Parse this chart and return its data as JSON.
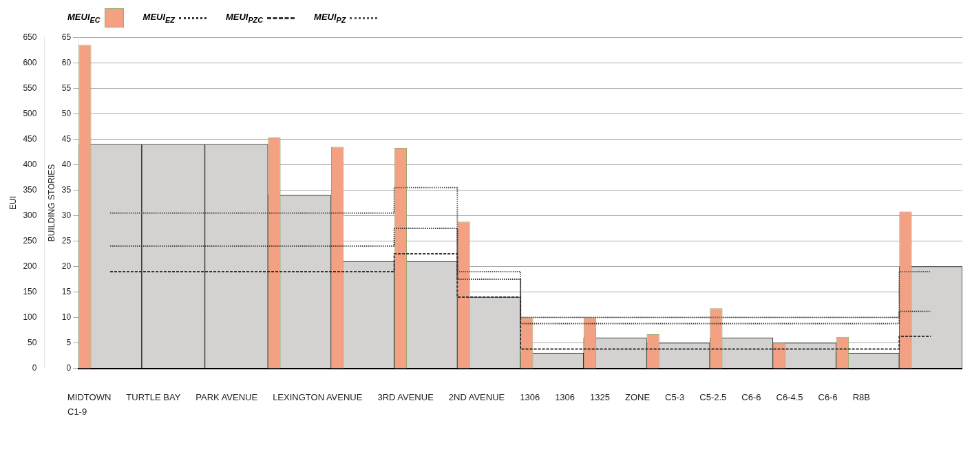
{
  "chart_data": {
    "type": "bar",
    "ylabel": "BUILDING STORIES",
    "y2label": "EUI",
    "categories": [
      null,
      null,
      null,
      null,
      null,
      null,
      null,
      null,
      null,
      null,
      null,
      null,
      null,
      null
    ],
    "series": [
      {
        "color": "#d3d2d1",
        "values": [
          44,
          44,
          44,
          34,
          21,
          21,
          14,
          3,
          6,
          5,
          6,
          5,
          3,
          20
        ]
      },
      {
        "name": "MEUI$_{EC}$",
        "axis": "y2",
        "color": "#f3a083",
        "values": [
          635,
          null,
          null,
          453,
          435,
          433,
          288,
          100,
          100,
          67,
          118,
          50,
          62,
          308
        ]
      },
      {
        "name": "MEUI$_{EZ}$",
        "type": "step",
        "axis": "y2",
        "color": "#333333",
        "line_style": "dotted",
        "values": [
          240,
          240,
          240,
          240,
          240,
          275,
          175,
          88,
          88,
          88,
          88,
          88,
          88,
          112
        ]
      },
      {
        "name": "MEUI$_{PZC}$",
        "type": "step",
        "axis": "y2",
        "color": "#333333",
        "line_style": "dashed",
        "values": [
          190,
          190,
          190,
          190,
          190,
          225,
          140,
          38,
          38,
          38,
          38,
          38,
          38,
          63
        ]
      },
      {
        "name": "MEUI$_{PZ}$",
        "type": "step",
        "axis": "y2",
        "color": "#555555",
        "line_style": "dotted",
        "values": [
          305,
          305,
          305,
          305,
          305,
          355,
          190,
          100,
          100,
          100,
          100,
          100,
          100,
          190
        ]
      }
    ],
    "ylim": [
      0,
      65
    ],
    "yticks": [
      0,
      5,
      10,
      15,
      20,
      25,
      30,
      35,
      40,
      45,
      50,
      55,
      60,
      65
    ],
    "y2lim": [
      0,
      650
    ],
    "y2ticks": [
      0,
      50,
      100,
      150,
      200,
      250,
      300,
      350,
      400,
      450,
      500,
      550,
      600,
      650
    ],
    "grid": "y",
    "legend": "top left",
    "annotations": [
      "MIDTOWN",
      "TURTLE BAY",
      "PARK AVENUE",
      "LEXINGTON AVENUE",
      "3RD AVENUE",
      "2ND AVENUE",
      "1306",
      "1306",
      "1325",
      "ZONE",
      "C5-3",
      "C5-2.5",
      "C6-6",
      "C6-4.5",
      "C6-6",
      "R8B",
      "C1-9"
    ]
  }
}
